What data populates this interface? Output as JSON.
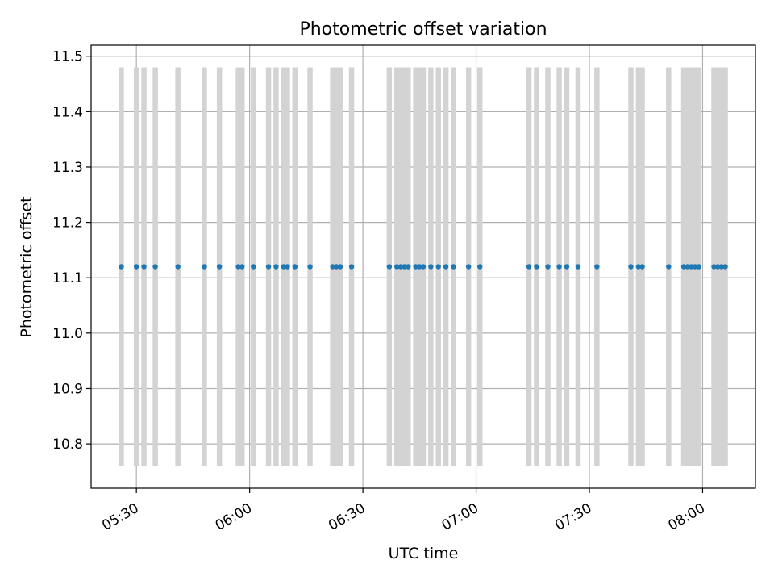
{
  "chart_data": {
    "type": "scatter",
    "title": "Photometric offset variation",
    "xlabel": "UTC time",
    "ylabel": "Photometric offset",
    "x_range": [
      "05:18",
      "08:14"
    ],
    "ylim": [
      10.72,
      11.52
    ],
    "grid": true,
    "x_ticks": [
      "05:30",
      "06:00",
      "06:30",
      "07:00",
      "07:30",
      "08:00"
    ],
    "y_ticks": [
      "10.8",
      "10.9",
      "11.0",
      "11.1",
      "11.2",
      "11.3",
      "11.4",
      "11.5"
    ],
    "y_tick_values": [
      10.8,
      10.9,
      11.0,
      11.1,
      11.2,
      11.3,
      11.4,
      11.5
    ],
    "series": [
      {
        "marker_color": "#1f77b4",
        "y": 11.12,
        "error_low": 10.76,
        "error_high": 11.48,
        "error_color": "#d3d3d3",
        "times": [
          "05:26",
          "05:30",
          "05:32",
          "05:35",
          "05:41",
          "05:48",
          "05:52",
          "05:57",
          "05:58",
          "06:01",
          "06:05",
          "06:07",
          "06:09",
          "06:10",
          "06:12",
          "06:16",
          "06:22",
          "06:23",
          "06:24",
          "06:27",
          "06:37",
          "06:39",
          "06:40",
          "06:41",
          "06:42",
          "06:44",
          "06:45",
          "06:46",
          "06:48",
          "06:50",
          "06:52",
          "06:54",
          "06:58",
          "07:01",
          "07:14",
          "07:16",
          "07:19",
          "07:22",
          "07:24",
          "07:27",
          "07:32",
          "07:41",
          "07:43",
          "07:44",
          "07:51",
          "07:55",
          "07:56",
          "07:57",
          "07:58",
          "07:59",
          "08:03",
          "08:04",
          "08:05",
          "08:06"
        ]
      }
    ]
  }
}
